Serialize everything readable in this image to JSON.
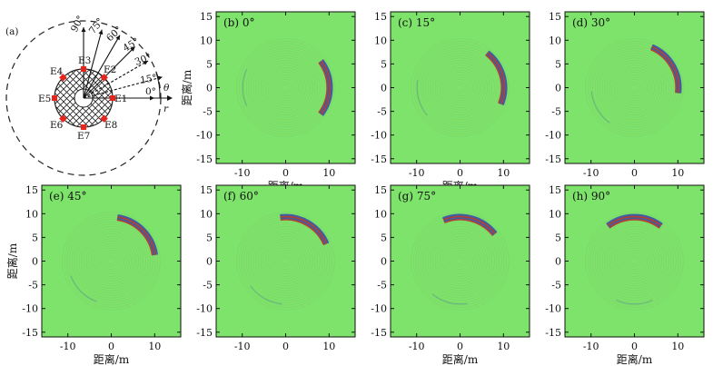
{
  "figure": {
    "diagram": {
      "panel_label": "(a)",
      "electrodes": [
        "E1",
        "E2",
        "E3",
        "E4",
        "E5",
        "E6",
        "E7",
        "E8"
      ],
      "angle_labels": [
        "0°",
        "15°",
        "30°",
        "45°",
        "60°",
        "75°",
        "90°"
      ],
      "theta_label": "θ",
      "r_label": "r",
      "colors": {
        "electrode": "#e8241c",
        "hatch": "#222222"
      }
    },
    "axis_labels": {
      "x": "距离/m",
      "y": "距离/m"
    },
    "ticks": [
      "-10",
      "0",
      "10"
    ],
    "y_ticks": [
      "15",
      "10",
      "5",
      "0",
      "-5",
      "-10",
      "-15"
    ],
    "colors": {
      "field_background": "#7ee36a",
      "wave_red": "#b8332d",
      "wave_blue": "#3a52a8"
    }
  },
  "chart_data": [
    {
      "type": "heatmap",
      "title": "(b) 0°",
      "angle_deg": 0,
      "xlim": [
        -16,
        16
      ],
      "ylim": [
        -16,
        16
      ],
      "source_radius_m": 10,
      "xlabel": "距离/m",
      "ylabel": "距离/m"
    },
    {
      "type": "heatmap",
      "title": "(c) 15°",
      "angle_deg": 15,
      "xlim": [
        -16,
        16
      ],
      "ylim": [
        -16,
        16
      ],
      "source_radius_m": 10,
      "xlabel": "距离/m",
      "ylabel": ""
    },
    {
      "type": "heatmap",
      "title": "(d) 30°",
      "angle_deg": 30,
      "xlim": [
        -16,
        16
      ],
      "ylim": [
        -16,
        16
      ],
      "source_radius_m": 10,
      "xlabel": "",
      "ylabel": ""
    },
    {
      "type": "heatmap",
      "title": "(e) 45°",
      "angle_deg": 45,
      "xlim": [
        -16,
        16
      ],
      "ylim": [
        -16,
        16
      ],
      "source_radius_m": 10,
      "xlabel": "距离/m",
      "ylabel": "距离/m"
    },
    {
      "type": "heatmap",
      "title": "(f) 60°",
      "angle_deg": 60,
      "xlim": [
        -16,
        16
      ],
      "ylim": [
        -16,
        16
      ],
      "source_radius_m": 10,
      "xlabel": "",
      "ylabel": ""
    },
    {
      "type": "heatmap",
      "title": "(g) 75°",
      "angle_deg": 75,
      "xlim": [
        -16,
        16
      ],
      "ylim": [
        -16,
        16
      ],
      "source_radius_m": 10,
      "xlabel": "距离/m",
      "ylabel": ""
    },
    {
      "type": "heatmap",
      "title": "(h) 90°",
      "angle_deg": 90,
      "xlim": [
        -16,
        16
      ],
      "ylim": [
        -16,
        16
      ],
      "source_radius_m": 10,
      "xlabel": "距离/m",
      "ylabel": ""
    }
  ]
}
